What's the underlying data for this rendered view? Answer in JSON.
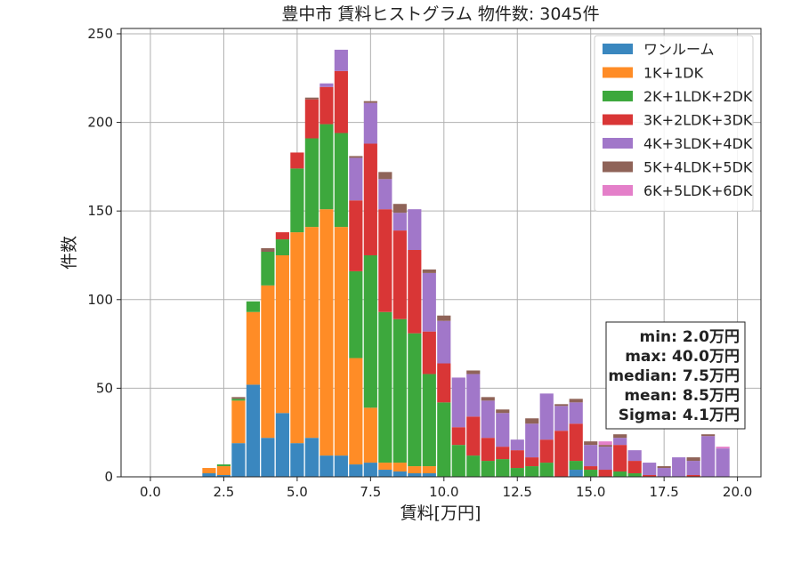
{
  "chart_data": {
    "type": "bar",
    "stacked": true,
    "title": "豊中市 賃料ヒストグラム  物件数: 3045件",
    "xlabel": "賃料[万円]",
    "ylabel": "件数",
    "xlim": [
      -1.0,
      20.8
    ],
    "ylim": [
      0,
      253
    ],
    "grid": true,
    "legend_position": "top-right",
    "bin_width": 0.5,
    "x": [
      2.0,
      2.5,
      3.0,
      3.5,
      4.0,
      4.5,
      5.0,
      5.5,
      6.0,
      6.5,
      7.0,
      7.5,
      8.0,
      8.5,
      9.0,
      9.5,
      10.0,
      10.5,
      11.0,
      11.5,
      12.0,
      12.5,
      13.0,
      13.5,
      14.0,
      14.5,
      15.0,
      15.5,
      16.0,
      16.5,
      17.0,
      17.5,
      18.0,
      18.5,
      19.0,
      19.5
    ],
    "series": [
      {
        "name": "ワンルーム",
        "color": "#3a87bf",
        "values": [
          2,
          1,
          19,
          52,
          22,
          36,
          19,
          22,
          12,
          12,
          7,
          8,
          4,
          3,
          2,
          2,
          0,
          0,
          0,
          0,
          0,
          0,
          0,
          0,
          0,
          4,
          0,
          0,
          0,
          0,
          0,
          0,
          0,
          0,
          0,
          0
        ]
      },
      {
        "name": "1K+1DK",
        "color": "#ff8c26",
        "values": [
          3,
          5,
          24,
          41,
          86,
          89,
          119,
          119,
          139,
          129,
          60,
          31,
          4,
          5,
          4,
          4,
          0,
          0,
          0,
          0,
          0,
          0,
          0,
          0,
          0,
          0,
          0,
          0,
          0,
          0,
          0,
          0,
          0,
          0,
          0,
          0
        ]
      },
      {
        "name": "2K+1LDK+2DK",
        "color": "#3da83d",
        "values": [
          0,
          1,
          1,
          6,
          19,
          9,
          36,
          50,
          48,
          53,
          49,
          86,
          85,
          81,
          75,
          52,
          42,
          18,
          12,
          9,
          10,
          5,
          6,
          8,
          0,
          5,
          4,
          0,
          3,
          2,
          0,
          0,
          0,
          0,
          0,
          0
        ]
      },
      {
        "name": "3K+2LDK+3DK",
        "color": "#d93636",
        "values": [
          0,
          0,
          0,
          0,
          0,
          4,
          9,
          22,
          21,
          35,
          40,
          63,
          58,
          50,
          47,
          24,
          22,
          10,
          22,
          13,
          7,
          10,
          5,
          13,
          26,
          21,
          2,
          4,
          15,
          7,
          1,
          0,
          0,
          1,
          0,
          0
        ]
      },
      {
        "name": "4K+3LDK+4DK",
        "color": "#a177c9",
        "values": [
          0,
          0,
          0,
          0,
          0,
          0,
          0,
          0,
          2,
          12,
          24,
          23,
          17,
          10,
          23,
          33,
          24,
          28,
          24,
          21,
          19,
          6,
          19,
          26,
          14,
          12,
          12,
          13,
          4,
          6,
          7,
          5,
          11,
          8,
          23,
          16
        ]
      },
      {
        "name": "5K+4LDK+5DK",
        "color": "#8f6358",
        "values": [
          0,
          0,
          1,
          0,
          2,
          0,
          0,
          1,
          0,
          0,
          1,
          1,
          4,
          5,
          0,
          2,
          3,
          0,
          2,
          2,
          2,
          0,
          3,
          0,
          1,
          2,
          2,
          1,
          2,
          0,
          0,
          1,
          0,
          2,
          1,
          0
        ]
      },
      {
        "name": "6K+5LDK+6DK",
        "color": "#e47fc9",
        "values": [
          0,
          0,
          0,
          0,
          0,
          0,
          0,
          0,
          0,
          0,
          0,
          0,
          0,
          0,
          0,
          0,
          0,
          0,
          0,
          0,
          0,
          0,
          0,
          0,
          0,
          0,
          0,
          2,
          0,
          0,
          0,
          0,
          0,
          0,
          0,
          1
        ]
      }
    ],
    "x_ticks": [
      0.0,
      2.5,
      5.0,
      7.5,
      10.0,
      12.5,
      15.0,
      17.5,
      20.0
    ],
    "x_tick_labels": [
      "0.0",
      "2.5",
      "5.0",
      "7.5",
      "10.0",
      "12.5",
      "15.0",
      "17.5",
      "20.0"
    ],
    "y_ticks": [
      0,
      50,
      100,
      150,
      200,
      250
    ],
    "y_tick_labels": [
      "0",
      "50",
      "100",
      "150",
      "200",
      "250"
    ],
    "stats": [
      "min: 2.0万円",
      "max: 40.0万円",
      "median: 7.5万円",
      "mean: 8.5万円",
      "Sigma: 4.1万円"
    ]
  }
}
